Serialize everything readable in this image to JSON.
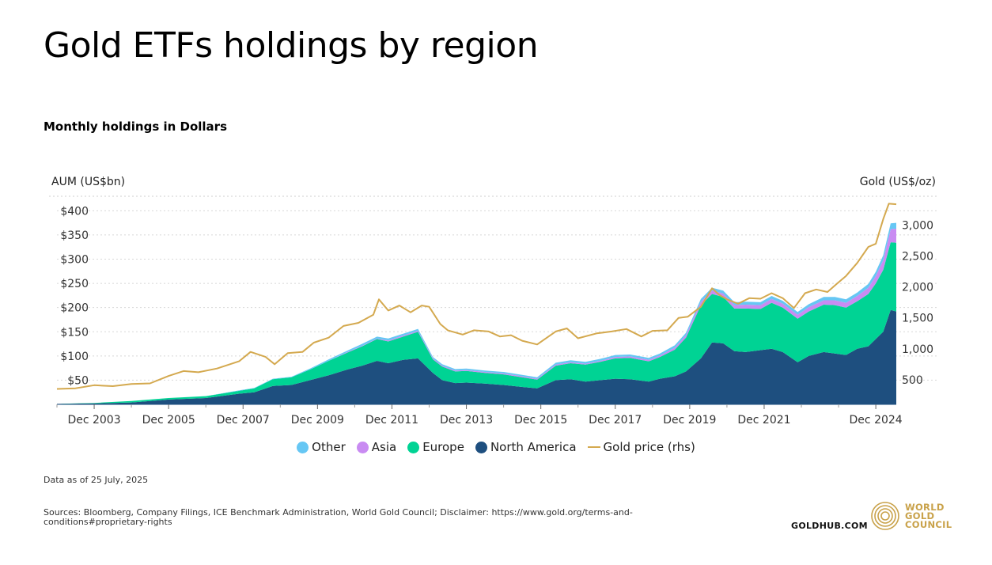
{
  "title": "Gold ETFs holdings by region",
  "subtitle": "Monthly holdings in Dollars",
  "note": "Data as of 25 July, 2025",
  "sources": "Sources: Bloomberg, Company Filings, ICE Benchmark Administration, World Gold Council; Disclaimer: https://www.gold.org/terms-and-conditions#proprietary-rights",
  "footer": {
    "goldhub": "GOLDHUB.COM",
    "logo_lines": [
      "WORLD",
      "GOLD",
      "COUNCIL"
    ]
  },
  "colors": {
    "other": "#66c7f4",
    "asia": "#c98bf2",
    "europe": "#00d394",
    "north_america": "#1e4f7f",
    "gold": "#d4a94f"
  },
  "chart_data": {
    "type": "area",
    "title": "Gold ETFs holdings by region",
    "left_axis_label": "AUM (US$bn)",
    "right_axis_label": "Gold (US$/oz)",
    "left_ylim": [
      0,
      430
    ],
    "right_ylim": [
      100,
      3470
    ],
    "left_ticks": [
      50,
      100,
      150,
      200,
      250,
      300,
      350,
      400
    ],
    "left_tick_labels": [
      "$50",
      "$100",
      "$150",
      "$200",
      "$250",
      "$300",
      "$350",
      "$400"
    ],
    "right_ticks": [
      500,
      1000,
      1500,
      2000,
      2500,
      3000
    ],
    "right_tick_labels": [
      "500",
      "1,000",
      "1,500",
      "2,000",
      "2,500",
      "3,000"
    ],
    "xlim": [
      2003.0,
      2025.55
    ],
    "x_ticks": [
      2004.0,
      2006.0,
      2008.0,
      2010.0,
      2012.0,
      2014.0,
      2016.0,
      2018.0,
      2020.0,
      2022.0,
      2025.0
    ],
    "x_tick_labels": [
      "Dec 2003",
      "Dec 2005",
      "Dec 2007",
      "Dec 2009",
      "Dec 2011",
      "Dec 2013",
      "Dec 2015",
      "Dec 2017",
      "Dec 2019",
      "Dec 2021",
      "Dec 2024"
    ],
    "legend": [
      "Other",
      "Asia",
      "Europe",
      "North America",
      "Gold price (rhs)"
    ],
    "x": [
      2003.0,
      2004.0,
      2005.0,
      2006.0,
      2007.0,
      2007.9,
      2008.3,
      2008.8,
      2009.3,
      2009.8,
      2010.3,
      2010.8,
      2011.2,
      2011.6,
      2011.9,
      2012.3,
      2012.7,
      2013.1,
      2013.35,
      2013.7,
      2014.0,
      2014.5,
      2015.0,
      2015.5,
      2015.9,
      2016.4,
      2016.8,
      2017.2,
      2017.6,
      2018.0,
      2018.4,
      2018.9,
      2019.2,
      2019.6,
      2019.9,
      2020.3,
      2020.6,
      2020.9,
      2021.2,
      2021.5,
      2021.9,
      2022.2,
      2022.5,
      2022.9,
      2023.2,
      2023.6,
      2023.9,
      2024.2,
      2024.5,
      2024.8,
      2025.0,
      2025.2,
      2025.4,
      2025.55
    ],
    "series": [
      {
        "name": "North America",
        "values": [
          1,
          2,
          4,
          10,
          13,
          22,
          25,
          38,
          40,
          50,
          60,
          72,
          80,
          90,
          85,
          92,
          95,
          65,
          50,
          44,
          45,
          43,
          40,
          36,
          33,
          50,
          52,
          47,
          50,
          53,
          52,
          47,
          53,
          58,
          68,
          95,
          128,
          126,
          110,
          108,
          112,
          115,
          108,
          87,
          100,
          108,
          105,
          102,
          115,
          120,
          135,
          150,
          195,
          192
        ]
      },
      {
        "name": "Europe",
        "values": [
          0,
          1,
          3,
          3,
          4,
          6,
          8,
          14,
          16,
          22,
          30,
          35,
          40,
          45,
          45,
          48,
          55,
          28,
          28,
          24,
          24,
          22,
          22,
          20,
          18,
          30,
          33,
          35,
          38,
          42,
          44,
          42,
          45,
          55,
          70,
          110,
          100,
          96,
          88,
          90,
          85,
          95,
          92,
          90,
          92,
          98,
          100,
          98,
          98,
          108,
          115,
          128,
          140,
          142
        ]
      },
      {
        "name": "Asia",
        "values": [
          0,
          0,
          0,
          0,
          0,
          0,
          0,
          0,
          0,
          0,
          0,
          1,
          1,
          1,
          2,
          2,
          2,
          2,
          2,
          2,
          2,
          2,
          2,
          2,
          2,
          2,
          2,
          2,
          2,
          3,
          3,
          3,
          3,
          4,
          5,
          7,
          7,
          7,
          7,
          8,
          8,
          8,
          8,
          8,
          9,
          9,
          10,
          10,
          11,
          13,
          15,
          20,
          27,
          29
        ]
      },
      {
        "name": "Other",
        "values": [
          0,
          0,
          0,
          0,
          0,
          1,
          1,
          1,
          1,
          2,
          3,
          3,
          4,
          4,
          4,
          4,
          4,
          3,
          3,
          3,
          3,
          3,
          3,
          3,
          3,
          4,
          4,
          4,
          4,
          4,
          4,
          4,
          4,
          5,
          5,
          6,
          6,
          6,
          6,
          6,
          6,
          6,
          6,
          6,
          6,
          7,
          7,
          7,
          7,
          8,
          9,
          10,
          12,
          12
        ]
      }
    ],
    "gold_price": {
      "name": "Gold price (rhs)",
      "x": [
        2003.0,
        2003.5,
        2004.0,
        2004.5,
        2005.0,
        2005.5,
        2006.0,
        2006.4,
        2006.8,
        2007.3,
        2007.9,
        2008.2,
        2008.6,
        2008.85,
        2009.2,
        2009.6,
        2009.9,
        2010.3,
        2010.7,
        2011.1,
        2011.5,
        2011.65,
        2011.9,
        2012.2,
        2012.5,
        2012.8,
        2013.0,
        2013.3,
        2013.5,
        2013.9,
        2014.2,
        2014.6,
        2014.9,
        2015.2,
        2015.5,
        2015.9,
        2016.4,
        2016.7,
        2017.0,
        2017.5,
        2017.9,
        2018.3,
        2018.7,
        2019.0,
        2019.4,
        2019.7,
        2019.95,
        2020.3,
        2020.6,
        2020.8,
        2021.0,
        2021.3,
        2021.6,
        2021.9,
        2022.2,
        2022.5,
        2022.8,
        2023.1,
        2023.4,
        2023.7,
        2023.95,
        2024.2,
        2024.5,
        2024.8,
        2025.0,
        2025.2,
        2025.35,
        2025.55
      ],
      "values": [
        350,
        360,
        410,
        395,
        430,
        440,
        560,
        640,
        620,
        680,
        800,
        950,
        870,
        750,
        930,
        950,
        1100,
        1180,
        1370,
        1420,
        1550,
        1800,
        1620,
        1700,
        1590,
        1700,
        1680,
        1400,
        1300,
        1230,
        1300,
        1280,
        1200,
        1220,
        1130,
        1070,
        1280,
        1330,
        1170,
        1250,
        1280,
        1320,
        1200,
        1290,
        1300,
        1500,
        1520,
        1680,
        1980,
        1870,
        1800,
        1730,
        1820,
        1810,
        1900,
        1820,
        1660,
        1900,
        1960,
        1920,
        2050,
        2180,
        2390,
        2650,
        2700,
        3100,
        3350,
        3340
      ]
    }
  }
}
